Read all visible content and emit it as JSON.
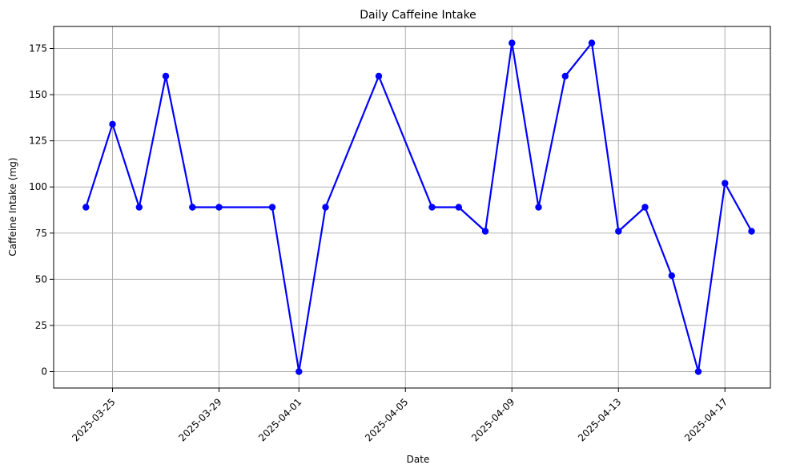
{
  "chart_data": {
    "type": "line",
    "title": "Daily Caffeine Intake",
    "xlabel": "Date",
    "ylabel": "Caffeine Intake (mg)",
    "x_ticks": [
      "2025-03-25",
      "2025-03-29",
      "2025-04-01",
      "2025-04-05",
      "2025-04-09",
      "2025-04-13",
      "2025-04-17"
    ],
    "y_ticks": [
      0,
      25,
      50,
      75,
      100,
      125,
      150,
      175
    ],
    "ylim": [
      -8.9,
      187
    ],
    "xlim": [
      "2025-03-23",
      "2025-04-19"
    ],
    "grid": true,
    "line_color": "#0000ff",
    "series": [
      {
        "x": [
          "2025-03-24",
          "2025-03-25",
          "2025-03-26",
          "2025-03-27",
          "2025-03-28",
          "2025-03-29",
          "2025-03-31",
          "2025-04-01",
          "2025-04-02",
          "2025-04-04",
          "2025-04-06",
          "2025-04-07",
          "2025-04-08",
          "2025-04-09",
          "2025-04-10",
          "2025-04-11",
          "2025-04-12",
          "2025-04-13",
          "2025-04-14",
          "2025-04-15",
          "2025-04-16",
          "2025-04-17",
          "2025-04-18"
        ],
        "y": [
          89,
          134,
          89,
          160,
          89,
          89,
          89,
          0,
          89,
          160,
          89,
          89,
          76,
          178,
          89,
          160,
          178,
          76,
          89,
          52,
          0,
          102,
          76
        ]
      }
    ]
  }
}
